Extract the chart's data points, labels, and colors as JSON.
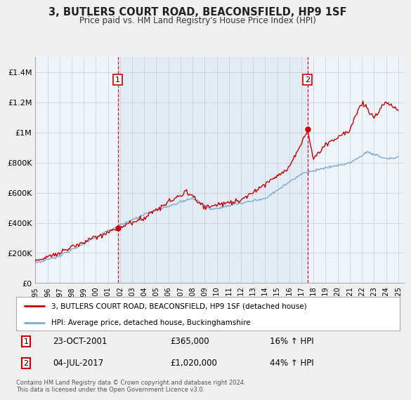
{
  "title": "3, BUTLERS COURT ROAD, BEACONSFIELD, HP9 1SF",
  "subtitle": "Price paid vs. HM Land Registry's House Price Index (HPI)",
  "ylabel_ticks": [
    "£0",
    "£200K",
    "£400K",
    "£600K",
    "£800K",
    "£1M",
    "£1.2M",
    "£1.4M"
  ],
  "ytick_values": [
    0,
    200000,
    400000,
    600000,
    800000,
    1000000,
    1200000,
    1400000
  ],
  "ylim": [
    0,
    1500000
  ],
  "sale1_year": 2001.81,
  "sale1_price": 365000,
  "sale1_label": "1",
  "sale1_date": "23-OCT-2001",
  "sale1_hpi_pct": "16%",
  "sale2_year": 2017.5,
  "sale2_price": 1020000,
  "sale2_label": "2",
  "sale2_date": "04-JUL-2017",
  "sale2_hpi_pct": "44%",
  "line_color_property": "#cc0000",
  "line_color_hpi": "#7aaad0",
  "vline_color": "#cc0000",
  "shade_color": "#dce9f5",
  "legend_label_property": "3, BUTLERS COURT ROAD, BEACONSFIELD, HP9 1SF (detached house)",
  "legend_label_hpi": "HPI: Average price, detached house, Buckinghamshire",
  "footer": "Contains HM Land Registry data © Crown copyright and database right 2024.\nThis data is licensed under the Open Government Licence v3.0.",
  "bg_color": "#f0f0f0",
  "plot_bg_color": "#eef4fb",
  "grid_color": "#cccccc",
  "xlim_start": 1995,
  "xlim_end": 2025.5
}
